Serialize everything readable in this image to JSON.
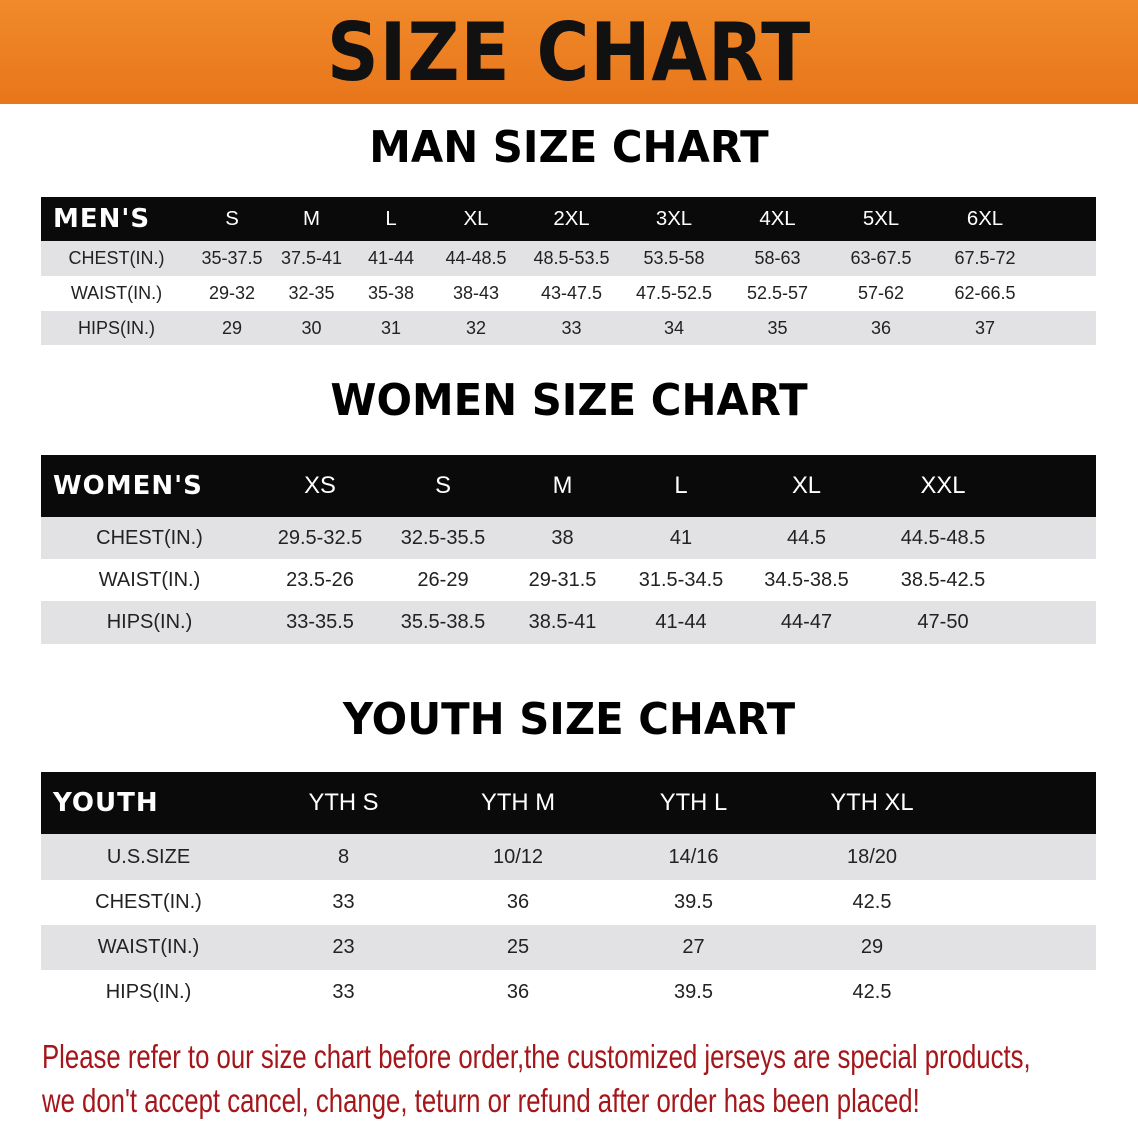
{
  "banner_title": "SIZE CHART",
  "men": {
    "title": "MAN SIZE CHART",
    "header": [
      "MEN'S",
      "S",
      "M",
      "L",
      "XL",
      "2XL",
      "3XL",
      "4XL",
      "5XL",
      "6XL"
    ],
    "rows": [
      [
        "CHEST(IN.)",
        "35-37.5",
        "37.5-41",
        "41-44",
        "44-48.5",
        "48.5-53.5",
        "53.5-58",
        "58-63",
        "63-67.5",
        "67.5-72"
      ],
      [
        "WAIST(IN.)",
        "29-32",
        "32-35",
        "35-38",
        "38-43",
        "43-47.5",
        "47.5-52.5",
        "52.5-57",
        "57-62",
        "62-66.5"
      ],
      [
        "HIPS(IN.)",
        "29",
        "30",
        "31",
        "32",
        "33",
        "34",
        "35",
        "36",
        "37"
      ]
    ]
  },
  "women": {
    "title": "WOMEN SIZE CHART",
    "header": [
      "WOMEN'S",
      "XS",
      "S",
      "M",
      "L",
      "XL",
      "XXL"
    ],
    "rows": [
      [
        "CHEST(IN.)",
        "29.5-32.5",
        "32.5-35.5",
        "38",
        "41",
        "44.5",
        "44.5-48.5"
      ],
      [
        "WAIST(IN.)",
        "23.5-26",
        "26-29",
        "29-31.5",
        "31.5-34.5",
        "34.5-38.5",
        "38.5-42.5"
      ],
      [
        "HIPS(IN.)",
        "33-35.5",
        "35.5-38.5",
        "38.5-41",
        "41-44",
        "44-47",
        "47-50"
      ]
    ]
  },
  "youth": {
    "title": "YOUTH SIZE CHART",
    "header": [
      "YOUTH",
      "YTH S",
      "YTH M",
      "YTH L",
      "YTH XL"
    ],
    "rows": [
      [
        "U.S.SIZE",
        "8",
        "10/12",
        "14/16",
        "18/20"
      ],
      [
        "CHEST(IN.)",
        "33",
        "36",
        "39.5",
        "42.5"
      ],
      [
        "WAIST(IN.)",
        "23",
        "25",
        "27",
        "29"
      ],
      [
        "HIPS(IN.)",
        "33",
        "36",
        "39.5",
        "42.5"
      ]
    ]
  },
  "footer": {
    "line1": "Please refer to our size chart before order,the customized jerseys are special products,",
    "line2": "we don't accept cancel, change, teturn or refund after order has been placed!"
  },
  "colors": {
    "banner": "#e8761a",
    "header_row": "#0a0a0a",
    "stripe": "#e2e2e4",
    "footer_text": "#a4161a"
  }
}
